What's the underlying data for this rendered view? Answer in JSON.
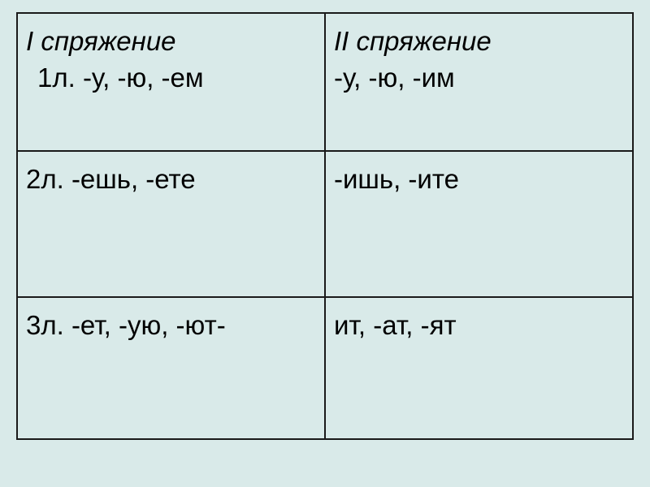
{
  "table": {
    "background_color": "#d9eae9",
    "border_color": "#1a1a1a",
    "text_color": "#000000",
    "font_size": 33,
    "columns": 2,
    "rows": 3,
    "cells": {
      "r1c1": {
        "header": "I спряжение",
        "sub": "1л. -у, -ю, -ем"
      },
      "r1c2": {
        "header": "II спряжение",
        "sub": "-у, -ю, -им"
      },
      "r2c1": "2л. -ешь, -ете",
      "r2c2": "-ишь, -ите",
      "r3c1": "3л. -ет, -ую, -ют-",
      "r3c2": "ит, -ат, -ят"
    }
  }
}
